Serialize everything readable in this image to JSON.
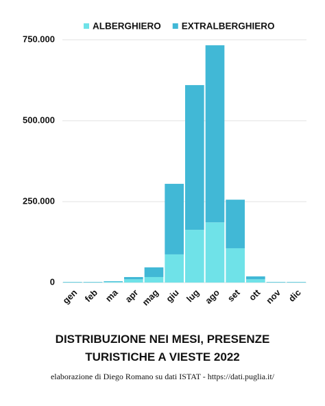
{
  "chart_data": {
    "type": "stacked_bar",
    "title": "DISTRIBUZIONE NEI MESI, PRESENZE TURISTICHE A VIESTE 2022",
    "source": "elaborazione di Diego Romano su dati ISTAT - https://dati.puglia.it/",
    "categories": [
      "gen",
      "feb",
      "ma",
      "apr",
      "mag",
      "giu",
      "lug",
      "ago",
      "set",
      "ott",
      "nov",
      "dic"
    ],
    "series": [
      {
        "name": "ALBERGHIERO",
        "color": "#6fe2e8",
        "values": [
          1000,
          1000,
          2000,
          10000,
          17000,
          87000,
          163000,
          186000,
          106000,
          10000,
          1000,
          1000
        ]
      },
      {
        "name": "EXTRALBERGHIERO",
        "color": "#41b8d6",
        "values": [
          1000,
          1000,
          2000,
          7000,
          30000,
          218000,
          447000,
          547000,
          150000,
          9000,
          1000,
          1000
        ]
      }
    ],
    "ylim": [
      0,
      750000
    ],
    "yticks": [
      0,
      {
        "value": 250000,
        "label": "250.000"
      },
      {
        "value": 500000,
        "label": "500.000"
      },
      {
        "value": 750000,
        "label": "750.000"
      }
    ],
    "grid": true,
    "legend": "top"
  }
}
